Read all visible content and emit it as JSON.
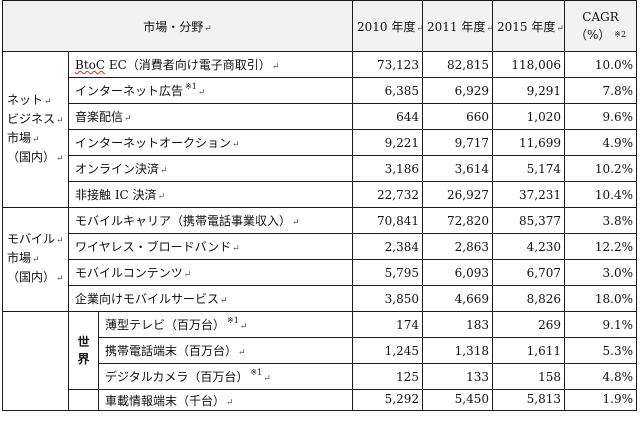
{
  "header": {
    "market": "市場・分野",
    "y2010": "2010 年度",
    "y2011": "2011 年度",
    "y2015": "2015 年度",
    "cagr_title": "CAGR",
    "cagr_unit": "（%）",
    "cagr_note": "※2"
  },
  "groups": {
    "net": [
      "ネット",
      "ビジネス",
      "市場",
      "（国内）"
    ],
    "mobile": [
      "モバイル",
      "市場",
      "（国内）"
    ],
    "world": [
      "世",
      "界"
    ]
  },
  "rows": [
    {
      "item_a": "BtoC",
      "item_b": " EC（消費者向け電子商取引）",
      "note": "",
      "v2010": "73,123",
      "v2011": "82,815",
      "v2015": "118,006",
      "cagr": "10.0%"
    },
    {
      "item_a": "",
      "item_b": "インターネット広告",
      "note": "※1",
      "v2010": "6,385",
      "v2011": "6,929",
      "v2015": "9,291",
      "cagr": "7.8%"
    },
    {
      "item_a": "",
      "item_b": "音楽配信",
      "note": "",
      "v2010": "644",
      "v2011": "660",
      "v2015": "1,020",
      "cagr": "9.6%"
    },
    {
      "item_a": "",
      "item_b": "インターネットオークション",
      "note": "",
      "v2010": "9,221",
      "v2011": "9,717",
      "v2015": "11,699",
      "cagr": "4.9%"
    },
    {
      "item_a": "",
      "item_b": "オンライン決済",
      "note": "",
      "v2010": "3,186",
      "v2011": "3,614",
      "v2015": "5,174",
      "cagr": "10.2%"
    },
    {
      "item_a": "",
      "item_b": "非接触 IC 決済",
      "note": "",
      "v2010": "22,732",
      "v2011": "26,927",
      "v2015": "37,231",
      "cagr": "10.4%"
    },
    {
      "item_a": "",
      "item_b": "モバイルキャリア（携帯電話事業収入）",
      "note": "",
      "v2010": "70,841",
      "v2011": "72,820",
      "v2015": "85,377",
      "cagr": "3.8%"
    },
    {
      "item_a": "",
      "item_b": "ワイヤレス・ブロードバンド",
      "note": "",
      "v2010": "2,384",
      "v2011": "2,863",
      "v2015": "4,230",
      "cagr": "12.2%"
    },
    {
      "item_a": "",
      "item_b": "モバイルコンテンツ",
      "note": "",
      "v2010": "5,795",
      "v2011": "6,093",
      "v2015": "6,707",
      "cagr": "3.0%"
    },
    {
      "item_a": "",
      "item_b": "企業向けモバイルサービス",
      "note": "",
      "v2010": "3,850",
      "v2011": "4,669",
      "v2015": "8,826",
      "cagr": "18.0%"
    },
    {
      "item_a": "",
      "item_b": "薄型テレビ（百万台）",
      "note": "※1",
      "v2010": "174",
      "v2011": "183",
      "v2015": "269",
      "cagr": "9.1%"
    },
    {
      "item_a": "",
      "item_b": "携帯電話端末（百万台）",
      "note": "",
      "v2010": "1,245",
      "v2011": "1,318",
      "v2015": "1,611",
      "cagr": "5.3%"
    },
    {
      "item_a": "",
      "item_b": "デジタルカメラ（百万台）",
      "note": "※1",
      "v2010": "125",
      "v2011": "133",
      "v2015": "158",
      "cagr": "4.8%"
    },
    {
      "item_a": "",
      "item_b": "車載情報端末（千台）",
      "note": "",
      "v2010": "5,292",
      "v2011": "5,450",
      "v2015": "5,813",
      "cagr": "1.9%"
    }
  ],
  "marks": {
    "para": "↵",
    "row_end": "↵"
  }
}
